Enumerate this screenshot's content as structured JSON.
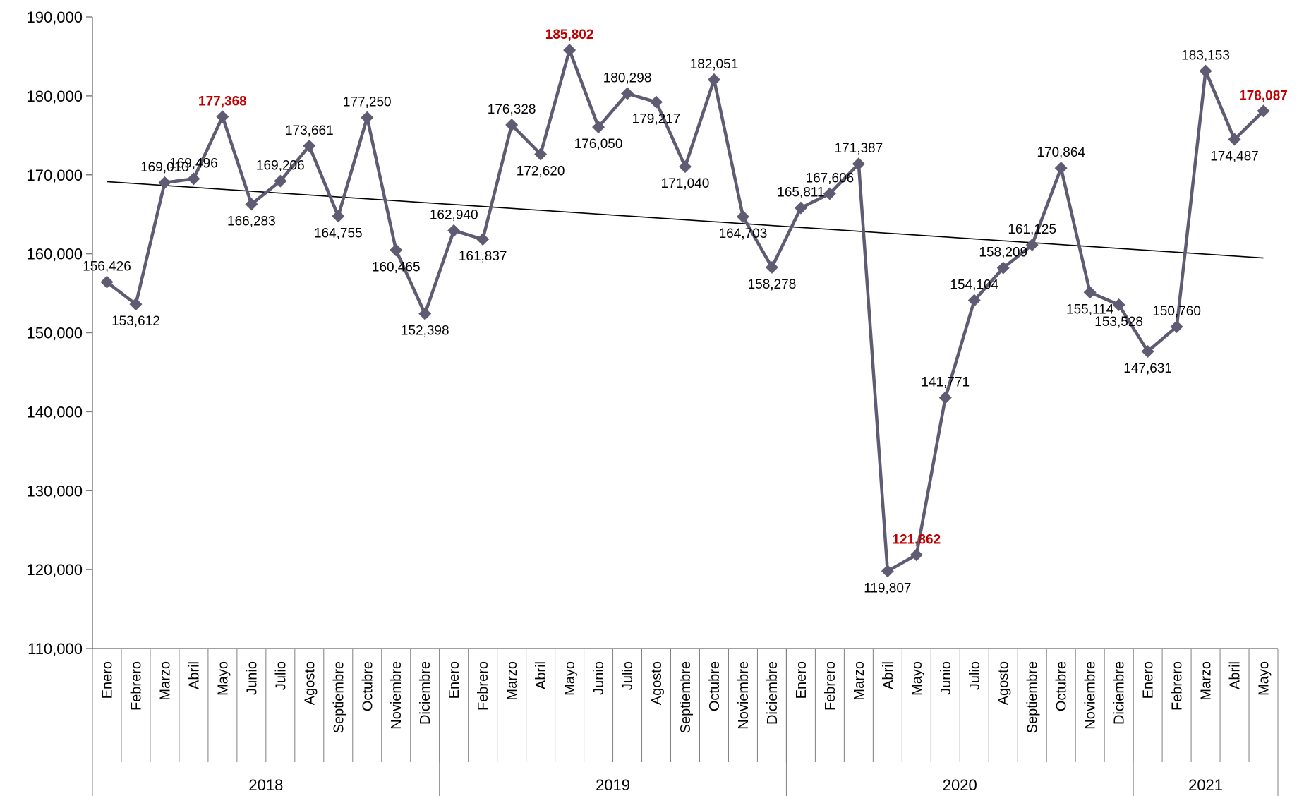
{
  "chart_data": {
    "type": "line",
    "title": "",
    "xlabel": "",
    "ylabel": "",
    "ylim": [
      110000,
      190000
    ],
    "yticks": [
      "110,000",
      "120,000",
      "130,000",
      "140,000",
      "150,000",
      "160,000",
      "170,000",
      "180,000",
      "190,000"
    ],
    "grid": false,
    "legend": "none",
    "colors": {
      "series": "#5f5b73",
      "trend": "#000000",
      "highlight": "#c00000",
      "axis": "#808080"
    },
    "marker": "diamond",
    "years": [
      {
        "label": "2018",
        "months": 12
      },
      {
        "label": "2019",
        "months": 12
      },
      {
        "label": "2020",
        "months": 12
      },
      {
        "label": "2021",
        "months": 5
      }
    ],
    "categories": [
      "Enero",
      "Febrero",
      "Marzo",
      "Abril",
      "Mayo",
      "Junio",
      "Julio",
      "Agosto",
      "Septiembre",
      "Octubre",
      "Noviembre",
      "Diciembre",
      "Enero",
      "Febrero",
      "Marzo",
      "Abril",
      "Mayo",
      "Junio",
      "Julio",
      "Agosto",
      "Septiembre",
      "Octubre",
      "Noviembre",
      "Diciembre",
      "Enero",
      "Febrero",
      "Marzo",
      "Abril",
      "Mayo",
      "Junio",
      "Julio",
      "Agosto",
      "Septiembre",
      "Octubre",
      "Noviembre",
      "Diciembre",
      "Enero",
      "Febrero",
      "Marzo",
      "Abril",
      "Mayo"
    ],
    "series": [
      {
        "values": [
          156426,
          153612,
          169010,
          169496,
          177368,
          166283,
          169206,
          173661,
          164755,
          177250,
          160465,
          152398,
          162940,
          161837,
          176328,
          172620,
          185802,
          176050,
          180298,
          179217,
          171040,
          182051,
          164703,
          158278,
          165811,
          167606,
          171387,
          119807,
          121862,
          141771,
          154104,
          158209,
          161125,
          170864,
          155114,
          153528,
          147631,
          150760,
          183153,
          174487,
          178087
        ],
        "labels": [
          "156,426",
          "153,612",
          "169,010",
          "169,496",
          "177,368",
          "166,283",
          "169,206",
          "173,661",
          "164,755",
          "177,250",
          "160,465",
          "152,398",
          "162,940",
          "161,837",
          "176,328",
          "172,620",
          "185,802",
          "176,050",
          "180,298",
          "179,217",
          "171,040",
          "182,051",
          "164,703",
          "158,278",
          "165,811",
          "167,606",
          "171,387",
          "119,807",
          "121,862",
          "141,771",
          "154,104",
          "158,209",
          "161,125",
          "170,864",
          "155,114",
          "153,528",
          "147,631",
          "150,760",
          "183,153",
          "174,487",
          "178,087"
        ],
        "highlight_indices": [
          4,
          16,
          28,
          40
        ]
      }
    ],
    "trendline": {
      "type": "linear"
    }
  }
}
